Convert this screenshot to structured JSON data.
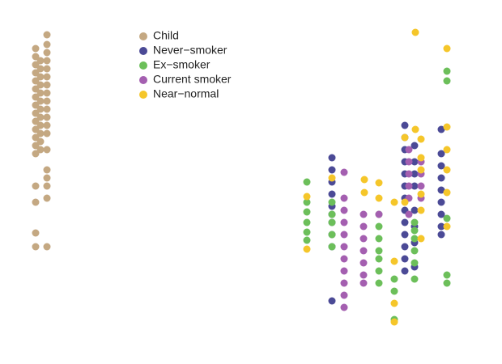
{
  "chart_data": {
    "type": "scatter",
    "xlim": [
      0,
      62
    ],
    "ylim": [
      0,
      44.5
    ],
    "series": [
      {
        "name": "Child",
        "color": "#c4a882",
        "x": [
          4.4,
          4.4,
          4.4,
          4.4,
          4.4,
          4.4,
          4.4,
          4.4,
          4.4,
          4.4,
          4.4,
          4.4,
          4.4,
          4.4,
          4.4,
          4.4,
          4.4,
          4.4,
          5.0,
          5.0,
          5.0,
          5.0,
          5.0,
          5.0,
          5.0,
          5.0,
          5.0,
          5.0,
          5.0,
          5.0,
          5.8,
          5.8,
          5.8,
          5.8,
          5.8,
          5.8,
          5.8,
          5.8,
          5.8,
          5.8,
          5.8,
          5.8,
          5.8,
          5.8,
          5.8,
          5.8,
          5.8,
          5.8,
          5.8
        ],
        "values": [
          38.5,
          37.5,
          36.5,
          35.5,
          34.5,
          33.5,
          32.5,
          31.5,
          30.5,
          29.5,
          28.5,
          27.5,
          26.5,
          25.5,
          21.5,
          19.5,
          15.7,
          14.0,
          37,
          36,
          35,
          34,
          33,
          32,
          31,
          30,
          29,
          28,
          27,
          26,
          40.2,
          39,
          38,
          37,
          36,
          35,
          34,
          33,
          32,
          31,
          30,
          29,
          28,
          26,
          23.5,
          22.5,
          21.5,
          20,
          14
        ]
      },
      {
        "name": "Never−smoker",
        "color": "#4b4a96",
        "x": [
          41.0,
          41.0,
          41.0,
          41.0,
          41.0,
          41.0,
          41.0,
          41.0,
          41.0,
          41.0,
          50.0,
          50.0,
          50.0,
          50.0,
          50.0,
          50.0,
          50.0,
          50.0,
          50.0,
          50.0,
          50.0,
          50.0,
          50.0,
          51.2,
          51.2,
          51.2,
          51.2,
          51.2,
          51.2,
          51.2,
          51.2,
          54.5,
          54.5,
          54.5,
          54.5,
          54.5,
          54.5,
          54.5,
          54.5,
          54.5
        ],
        "values": [
          25,
          23.5,
          22,
          20.5,
          19,
          18,
          17,
          15.5,
          14,
          7.3,
          29,
          27.5,
          26,
          24.5,
          23,
          21.5,
          20,
          18.5,
          17,
          15.5,
          14,
          12.5,
          11,
          26.5,
          24.5,
          23,
          21.5,
          18.5,
          16.5,
          14.5,
          11.5,
          28.5,
          25.5,
          24,
          22.5,
          21,
          19.5,
          18,
          16.5,
          15.5
        ]
      },
      {
        "name": "Ex−smoker",
        "color": "#6cbf5a",
        "x": [
          37.9,
          37.9,
          37.9,
          37.9,
          37.9,
          37.9,
          41.0,
          41.0,
          41.0,
          41.0,
          41.0,
          46.8,
          46.8,
          46.8,
          46.8,
          46.8,
          46.8,
          46.8,
          48.7,
          48.7,
          48.7,
          51.2,
          51.2,
          51.2,
          51.2,
          51.2,
          51.2,
          55.2,
          55.2,
          55.2,
          55.2,
          55.2
        ],
        "values": [
          22,
          19.5,
          18.3,
          17,
          15.8,
          14.8,
          19.5,
          18,
          17,
          15.5,
          14,
          18,
          16.5,
          15,
          13.5,
          12.5,
          11,
          9.5,
          10,
          8.5,
          5,
          17,
          16,
          15,
          13.5,
          12,
          10,
          35.7,
          34.5,
          17.5,
          10.5,
          9.5
        ]
      },
      {
        "name": "Current smoker",
        "color": "#a45fb0",
        "x": [
          42.5,
          42.5,
          42.5,
          42.5,
          42.5,
          42.5,
          42.5,
          42.5,
          42.5,
          42.5,
          42.5,
          44.9,
          44.9,
          44.9,
          44.9,
          44.9,
          44.9,
          44.9,
          46.8,
          50.5,
          50.5,
          50.5,
          50.5,
          50.5,
          50.5,
          52.0,
          52.0,
          52.0,
          52.0
        ],
        "values": [
          23.2,
          20,
          18.5,
          17,
          15.5,
          14,
          12.5,
          11,
          9.5,
          8,
          6.5,
          18,
          16.5,
          15,
          13.5,
          12,
          10.5,
          9.5,
          18,
          26,
          24.5,
          23,
          21.5,
          20,
          18,
          24.5,
          23,
          21.5,
          20
        ]
      },
      {
        "name": "Near−normal",
        "color": "#f5c62a",
        "x": [
          37.9,
          37.9,
          41.0,
          45.0,
          45.0,
          46.8,
          46.8,
          48.7,
          48.7,
          48.7,
          48.7,
          50.0,
          50.0,
          51.3,
          51.3,
          52.0,
          52.0,
          52.0,
          52.0,
          52.0,
          52.0,
          55.2,
          55.2,
          55.2,
          55.2,
          55.2,
          55.2
        ],
        "values": [
          20.2,
          13.7,
          22.5,
          22.3,
          20.7,
          21.9,
          20,
          19.5,
          12.2,
          7,
          4.7,
          19.5,
          27.5,
          40.5,
          28.5,
          27.3,
          25,
          23.5,
          20.5,
          18.5,
          15,
          38.5,
          28.8,
          26,
          23.5,
          20.7,
          16.5
        ]
      }
    ]
  }
}
